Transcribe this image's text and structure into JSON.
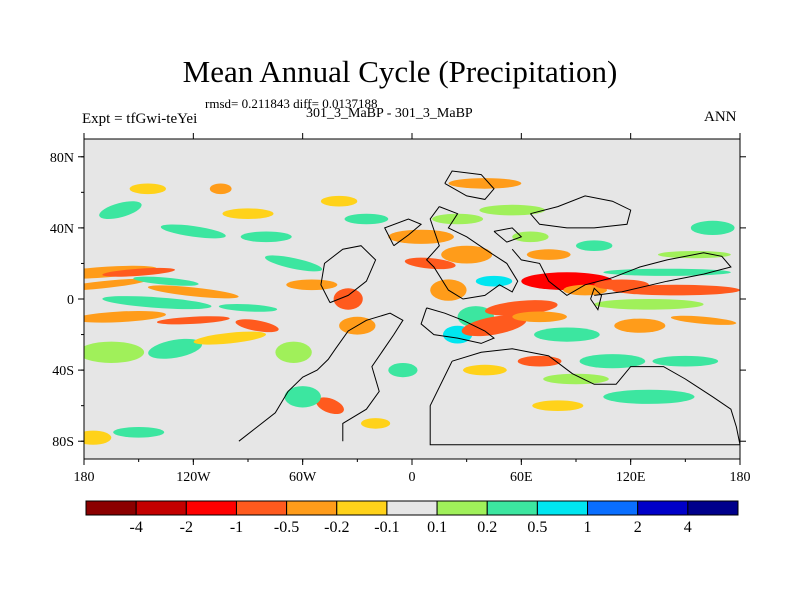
{
  "chart_data": {
    "type": "heatmap",
    "title": "Mean Annual Cycle (Precipitation)",
    "stats_text": "rmsd= 0.211843  diff= 0.0137188",
    "left_label": "Expt = tfGwi-teYei",
    "center_label": "301_3_MaBP - 301_3_MaBP",
    "right_label": "ANN",
    "x_ticks": [
      "180",
      "120W",
      "60W",
      "0",
      "60E",
      "120E",
      "180"
    ],
    "x_tick_lon": [
      -180,
      -120,
      -60,
      0,
      60,
      120,
      180
    ],
    "y_ticks": [
      "80N",
      "40N",
      "0",
      "40S",
      "80S"
    ],
    "y_tick_lat": [
      80,
      40,
      0,
      -40,
      -80
    ],
    "xlim": [
      -180,
      180
    ],
    "ylim": [
      -90,
      90
    ],
    "colorbar": {
      "labels": [
        "-4",
        "-2",
        "-1",
        "-0.5",
        "-0.2",
        "-0.1",
        "0.1",
        "0.2",
        "0.5",
        "1",
        "2",
        "4"
      ],
      "colors": [
        "#8b0000",
        "#c40000",
        "#ff0000",
        "#ff5a1e",
        "#ff9c1a",
        "#ffd21a",
        "#e6e6e6",
        "#a0f05a",
        "#3ce6a0",
        "#00e6f0",
        "#0a6eff",
        "#0000c8",
        "#00008b"
      ]
    }
  }
}
